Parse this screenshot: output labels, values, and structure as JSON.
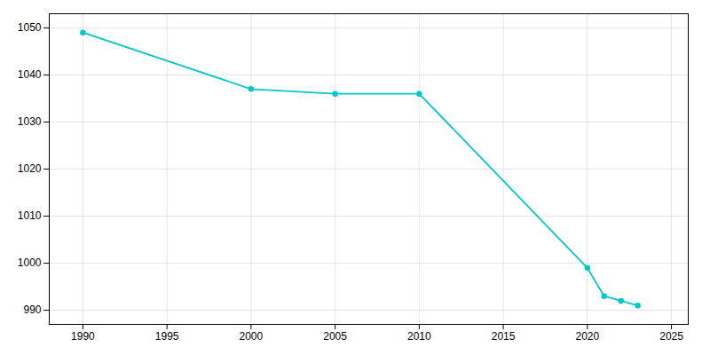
{
  "chart_data": {
    "type": "line",
    "x": [
      1990,
      2000,
      2005,
      2010,
      2020,
      2021,
      2022,
      2023
    ],
    "values": [
      1049,
      1037,
      1036,
      1036,
      999,
      993,
      992,
      991
    ],
    "color": "#00c8c8",
    "marker": "circle",
    "xlim": [
      1988,
      2026
    ],
    "ylim": [
      987,
      1053
    ],
    "xticks": [
      1990,
      1995,
      2000,
      2005,
      2010,
      2015,
      2020,
      2025
    ],
    "yticks": [
      990,
      1000,
      1010,
      1020,
      1030,
      1040,
      1050
    ],
    "grid": true
  }
}
